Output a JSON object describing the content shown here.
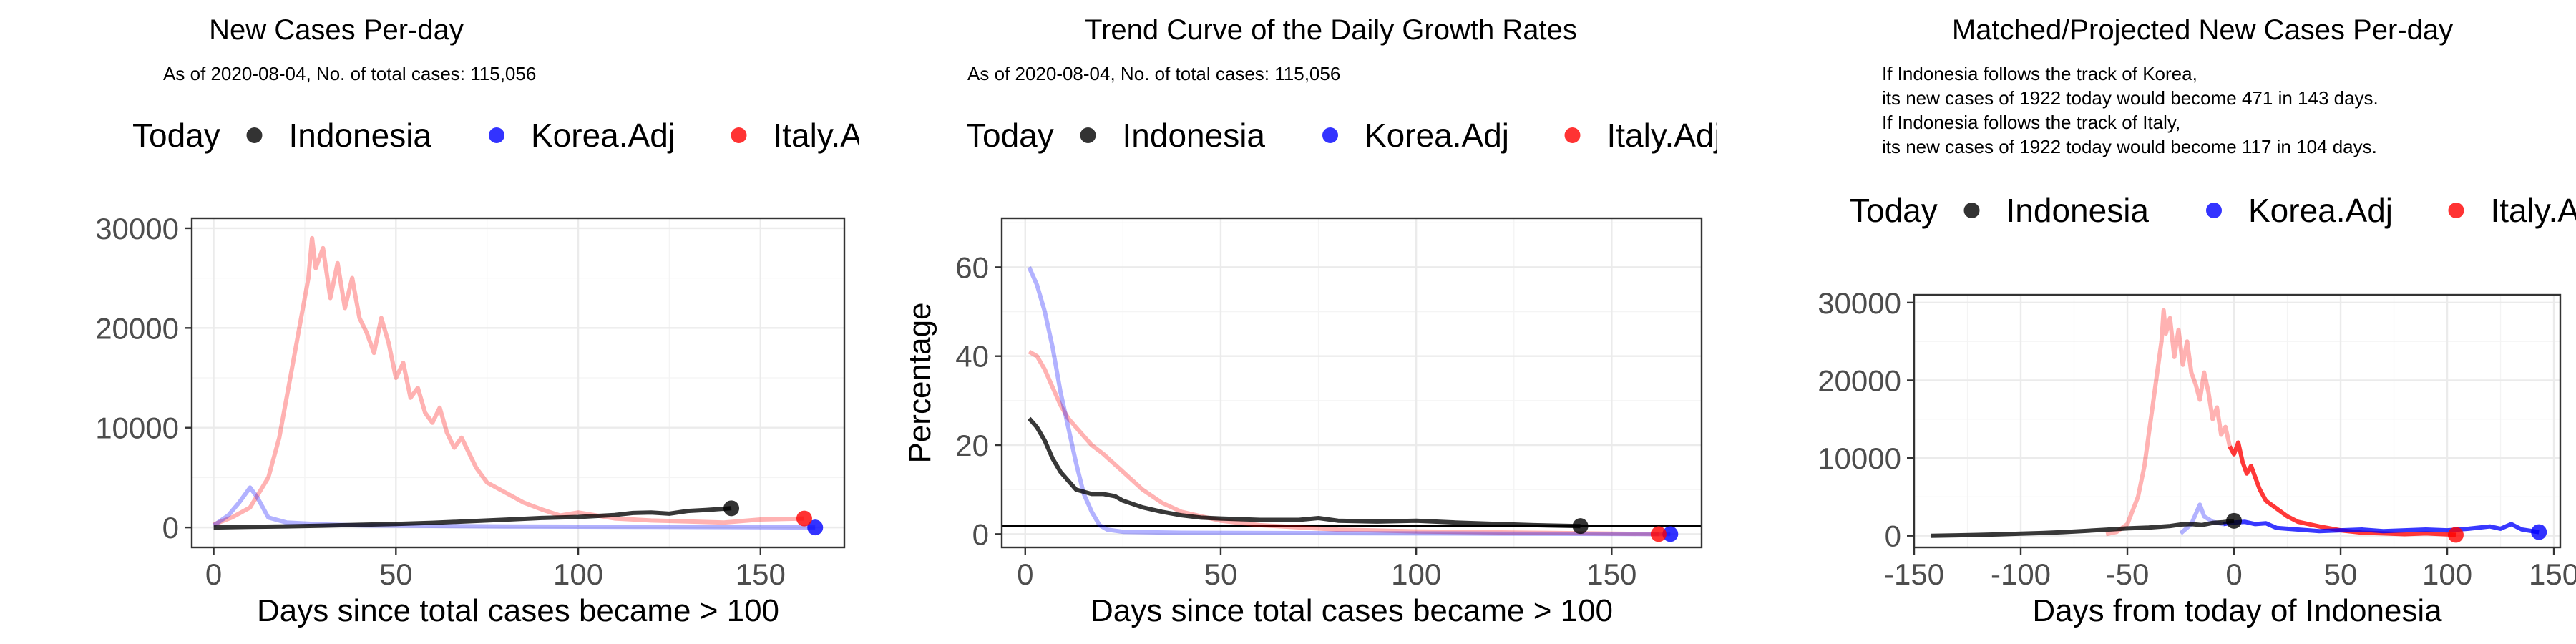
{
  "legend": {
    "today": "Today",
    "items": [
      "Indonesia",
      "Korea.Adj",
      "Italy.Adj"
    ]
  },
  "colors": {
    "indonesia": "#000000",
    "korea": "#0000ff",
    "italy": "#ff0000"
  },
  "chart_data": [
    {
      "type": "line",
      "title": "New Cases Per-day",
      "subtitle": "As of 2020-08-04, No. of total cases: 115,056",
      "xlabel": "Days since total cases became > 100",
      "ylabel": "",
      "xlim": [
        -6,
        173
      ],
      "ylim": [
        -2000,
        31000
      ],
      "xticks": [
        0,
        50,
        100,
        150
      ],
      "yticks": [
        0,
        10000,
        20000,
        30000
      ],
      "series": [
        {
          "name": "Indonesia",
          "color": "#000000",
          "today_x": 142,
          "today_y": 1922,
          "points": [
            [
              0,
              0
            ],
            [
              10,
              60
            ],
            [
              20,
              110
            ],
            [
              30,
              180
            ],
            [
              40,
              270
            ],
            [
              50,
              350
            ],
            [
              60,
              470
            ],
            [
              70,
              620
            ],
            [
              80,
              780
            ],
            [
              90,
              950
            ],
            [
              100,
              1050
            ],
            [
              110,
              1250
            ],
            [
              115,
              1450
            ],
            [
              120,
              1500
            ],
            [
              125,
              1380
            ],
            [
              130,
              1650
            ],
            [
              135,
              1750
            ],
            [
              142,
              1922
            ]
          ]
        },
        {
          "name": "Korea.Adj",
          "color": "#0000ff",
          "today_x": 165,
          "today_y": 0,
          "points": [
            [
              0,
              200
            ],
            [
              4,
              1200
            ],
            [
              7,
              2500
            ],
            [
              10,
              4000
            ],
            [
              12,
              3000
            ],
            [
              15,
              1000
            ],
            [
              20,
              500
            ],
            [
              30,
              300
            ],
            [
              40,
              200
            ],
            [
              60,
              150
            ],
            [
              80,
              100
            ],
            [
              100,
              80
            ],
            [
              120,
              60
            ],
            [
              140,
              40
            ],
            [
              165,
              0
            ]
          ]
        },
        {
          "name": "Italy.Adj",
          "color": "#ff0000",
          "today_x": 162,
          "today_y": 900,
          "points": [
            [
              0,
              300
            ],
            [
              5,
              1000
            ],
            [
              10,
              2000
            ],
            [
              15,
              5000
            ],
            [
              18,
              9000
            ],
            [
              20,
              13000
            ],
            [
              22,
              17000
            ],
            [
              24,
              21000
            ],
            [
              26,
              25000
            ],
            [
              27,
              29000
            ],
            [
              28,
              26000
            ],
            [
              30,
              28000
            ],
            [
              32,
              23000
            ],
            [
              34,
              26500
            ],
            [
              36,
              22000
            ],
            [
              38,
              25000
            ],
            [
              40,
              21000
            ],
            [
              42,
              19500
            ],
            [
              44,
              17500
            ],
            [
              46,
              21000
            ],
            [
              48,
              18500
            ],
            [
              50,
              15000
            ],
            [
              52,
              16500
            ],
            [
              54,
              13000
            ],
            [
              56,
              14000
            ],
            [
              58,
              11500
            ],
            [
              60,
              10500
            ],
            [
              62,
              12000
            ],
            [
              64,
              9500
            ],
            [
              66,
              8000
            ],
            [
              68,
              9000
            ],
            [
              70,
              7500
            ],
            [
              72,
              6000
            ],
            [
              75,
              4500
            ],
            [
              80,
              3500
            ],
            [
              85,
              2500
            ],
            [
              90,
              1800
            ],
            [
              95,
              1200
            ],
            [
              100,
              1500
            ],
            [
              110,
              900
            ],
            [
              120,
              700
            ],
            [
              130,
              600
            ],
            [
              140,
              500
            ],
            [
              150,
              800
            ],
            [
              162,
              900
            ]
          ]
        }
      ]
    },
    {
      "type": "line",
      "title": "Trend Curve of the Daily Growth Rates",
      "subtitle": "As of 2020-08-04, No. of total cases: 115,056",
      "xlabel": "Days since total cases became > 100",
      "ylabel": "Percentage",
      "xlim": [
        -6,
        173
      ],
      "ylim": [
        -3,
        71
      ],
      "xticks": [
        0,
        50,
        100,
        150
      ],
      "yticks": [
        0,
        20,
        40,
        60
      ],
      "hline": 1.8,
      "series": [
        {
          "name": "Indonesia",
          "color": "#000000",
          "today_x": 142,
          "today_y": 1.8,
          "points": [
            [
              1,
              26
            ],
            [
              3,
              24
            ],
            [
              5,
              21
            ],
            [
              7,
              17
            ],
            [
              9,
              14
            ],
            [
              11,
              12
            ],
            [
              13,
              10
            ],
            [
              15,
              9.5
            ],
            [
              17,
              9
            ],
            [
              20,
              9
            ],
            [
              23,
              8.5
            ],
            [
              25,
              7.5
            ],
            [
              30,
              6
            ],
            [
              35,
              5
            ],
            [
              40,
              4.2
            ],
            [
              45,
              3.7
            ],
            [
              50,
              3.5
            ],
            [
              60,
              3.2
            ],
            [
              70,
              3.2
            ],
            [
              75,
              3.6
            ],
            [
              80,
              3
            ],
            [
              90,
              2.8
            ],
            [
              100,
              3
            ],
            [
              110,
              2.6
            ],
            [
              120,
              2.3
            ],
            [
              130,
              2
            ],
            [
              142,
              1.8
            ]
          ]
        },
        {
          "name": "Korea.Adj",
          "color": "#0000ff",
          "today_x": 165,
          "today_y": 0,
          "points": [
            [
              1,
              60
            ],
            [
              3,
              56
            ],
            [
              5,
              50
            ],
            [
              7,
              42
            ],
            [
              9,
              32
            ],
            [
              11,
              24
            ],
            [
              13,
              16
            ],
            [
              15,
              9
            ],
            [
              17,
              5
            ],
            [
              19,
              2
            ],
            [
              21,
              1
            ],
            [
              25,
              0.5
            ],
            [
              40,
              0.3
            ],
            [
              80,
              0.2
            ],
            [
              120,
              0.1
            ],
            [
              165,
              0
            ]
          ]
        },
        {
          "name": "Italy.Adj",
          "color": "#ff0000",
          "today_x": 162,
          "today_y": 0,
          "points": [
            [
              1,
              41
            ],
            [
              3,
              40
            ],
            [
              5,
              37
            ],
            [
              7,
              33
            ],
            [
              9,
              29
            ],
            [
              11,
              26
            ],
            [
              13,
              24
            ],
            [
              15,
              22
            ],
            [
              17,
              20
            ],
            [
              20,
              18
            ],
            [
              25,
              14
            ],
            [
              30,
              10
            ],
            [
              35,
              7
            ],
            [
              40,
              5
            ],
            [
              45,
              4
            ],
            [
              50,
              3
            ],
            [
              60,
              2
            ],
            [
              70,
              1.5
            ],
            [
              80,
              1
            ],
            [
              100,
              0.6
            ],
            [
              130,
              0.3
            ],
            [
              162,
              0
            ]
          ]
        }
      ]
    },
    {
      "type": "line",
      "title": "Matched/Projected New Cases Per-day",
      "subtitle": "If Indonesia follows the track of Korea,\nits new cases of 1922 today would become 471 in 143 days.\nIf Indonesia follows the track of Italy,\nits new cases of 1922 today would become 117 in 104 days.",
      "xlabel": "Days from today of Indonesia",
      "ylabel": "",
      "xlim": [
        -150,
        153
      ],
      "ylim": [
        -1500,
        31000
      ],
      "xticks": [
        -150,
        -100,
        -50,
        0,
        50,
        100,
        150
      ],
      "yticks": [
        0,
        10000,
        20000,
        30000
      ],
      "series": [
        {
          "name": "Indonesia",
          "color": "#000000",
          "today_x": 0,
          "today_y": 1922,
          "points": [
            [
              -142,
              0
            ],
            [
              -130,
              60
            ],
            [
              -120,
              110
            ],
            [
              -110,
              180
            ],
            [
              -100,
              270
            ],
            [
              -90,
              350
            ],
            [
              -80,
              470
            ],
            [
              -70,
              620
            ],
            [
              -60,
              780
            ],
            [
              -50,
              950
            ],
            [
              -40,
              1050
            ],
            [
              -30,
              1250
            ],
            [
              -25,
              1450
            ],
            [
              -20,
              1500
            ],
            [
              -15,
              1380
            ],
            [
              -10,
              1650
            ],
            [
              -5,
              1750
            ],
            [
              0,
              1922
            ]
          ]
        },
        {
          "name": "Korea.Adj",
          "color": "#0000ff",
          "today_x": 143,
          "today_y": 471,
          "projected_from": 0,
          "points": [
            [
              -25,
              300
            ],
            [
              -20,
              1500
            ],
            [
              -16,
              4000
            ],
            [
              -14,
              2500
            ],
            [
              -10,
              1800
            ],
            [
              -5,
              1500
            ],
            [
              0,
              1700
            ],
            [
              5,
              1800
            ],
            [
              10,
              1500
            ],
            [
              15,
              1600
            ],
            [
              20,
              1000
            ],
            [
              30,
              800
            ],
            [
              40,
              600
            ],
            [
              50,
              700
            ],
            [
              60,
              800
            ],
            [
              70,
              600
            ],
            [
              80,
              700
            ],
            [
              90,
              800
            ],
            [
              100,
              700
            ],
            [
              110,
              900
            ],
            [
              120,
              1200
            ],
            [
              125,
              900
            ],
            [
              130,
              1500
            ],
            [
              135,
              800
            ],
            [
              143,
              471
            ]
          ]
        },
        {
          "name": "Italy.Adj",
          "color": "#ff0000",
          "today_x": 104,
          "today_y": 117,
          "projected_from": 0,
          "points": [
            [
              -60,
              200
            ],
            [
              -55,
              500
            ],
            [
              -50,
              1500
            ],
            [
              -45,
              5000
            ],
            [
              -42,
              9000
            ],
            [
              -40,
              13000
            ],
            [
              -38,
              17000
            ],
            [
              -36,
              21000
            ],
            [
              -34,
              25000
            ],
            [
              -33,
              29000
            ],
            [
              -32,
              26000
            ],
            [
              -30,
              28000
            ],
            [
              -28,
              23000
            ],
            [
              -26,
              26500
            ],
            [
              -24,
              22000
            ],
            [
              -22,
              25000
            ],
            [
              -20,
              21000
            ],
            [
              -18,
              19500
            ],
            [
              -16,
              17500
            ],
            [
              -14,
              21000
            ],
            [
              -12,
              18500
            ],
            [
              -10,
              15000
            ],
            [
              -8,
              16500
            ],
            [
              -6,
              13000
            ],
            [
              -4,
              14000
            ],
            [
              -2,
              11500
            ],
            [
              0,
              10500
            ],
            [
              2,
              12000
            ],
            [
              4,
              9500
            ],
            [
              6,
              8000
            ],
            [
              8,
              9000
            ],
            [
              10,
              7500
            ],
            [
              12,
              6000
            ],
            [
              15,
              4500
            ],
            [
              20,
              3500
            ],
            [
              25,
              2500
            ],
            [
              30,
              1800
            ],
            [
              40,
              1200
            ],
            [
              50,
              700
            ],
            [
              60,
              400
            ],
            [
              70,
              300
            ],
            [
              80,
              200
            ],
            [
              90,
              300
            ],
            [
              104,
              117
            ]
          ]
        }
      ]
    }
  ]
}
